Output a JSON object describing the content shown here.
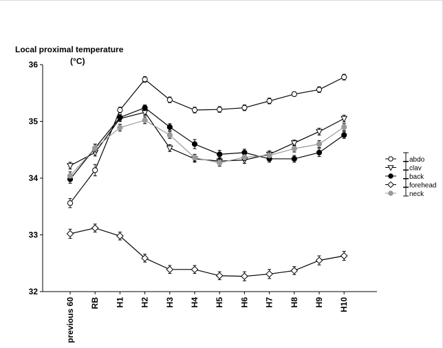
{
  "chart_data": {
    "type": "line",
    "title": "Local proximal temperature",
    "ylabel": "(°C)",
    "xlabel": "",
    "categories": [
      "previous 60",
      "RB",
      "H1",
      "H2",
      "H3",
      "H4",
      "H5",
      "H6",
      "H7",
      "H8",
      "H9",
      "H10"
    ],
    "ylim": [
      32,
      36
    ],
    "yticks": [
      32,
      33,
      34,
      35,
      36
    ],
    "grid": false,
    "legend": "right",
    "series": [
      {
        "name": "abdo",
        "marker": "circle-open",
        "color": "#000000",
        "values": [
          33.56,
          34.14,
          35.2,
          35.74,
          35.38,
          35.2,
          35.21,
          35.24,
          35.36,
          35.48,
          35.56,
          35.78
        ],
        "errors": [
          0.08,
          0.1,
          0.05,
          0.05,
          0.05,
          0.05,
          0.05,
          0.05,
          0.05,
          0.04,
          0.05,
          0.05
        ]
      },
      {
        "name": "clav",
        "marker": "triangle-down-open",
        "color": "#000000",
        "values": [
          34.22,
          34.45,
          35.05,
          35.16,
          34.53,
          34.34,
          34.3,
          34.32,
          34.42,
          34.62,
          34.82,
          35.05
        ],
        "errors": [
          0.06,
          0.06,
          0.05,
          0.05,
          0.06,
          0.06,
          0.06,
          0.06,
          0.06,
          0.05,
          0.06,
          0.06
        ]
      },
      {
        "name": "back",
        "marker": "circle-filled",
        "color": "#000000",
        "values": [
          33.98,
          34.53,
          35.07,
          35.24,
          34.9,
          34.6,
          34.42,
          34.45,
          34.34,
          34.34,
          34.45,
          34.76
        ],
        "errors": [
          0.07,
          0.07,
          0.05,
          0.05,
          0.06,
          0.08,
          0.07,
          0.06,
          0.06,
          0.06,
          0.07,
          0.06
        ]
      },
      {
        "name": "forehead",
        "marker": "diamond-open",
        "color": "#000000",
        "values": [
          33.02,
          33.12,
          32.98,
          32.59,
          32.39,
          32.39,
          32.28,
          32.27,
          32.31,
          32.37,
          32.55,
          32.63
        ],
        "errors": [
          0.08,
          0.07,
          0.07,
          0.07,
          0.07,
          0.07,
          0.07,
          0.08,
          0.08,
          0.07,
          0.08,
          0.08
        ]
      },
      {
        "name": "neck",
        "marker": "circle-filled",
        "color": "#999999",
        "values": [
          34.04,
          34.53,
          34.89,
          35.02,
          34.76,
          34.36,
          34.27,
          34.37,
          34.4,
          34.52,
          34.6,
          34.9
        ],
        "errors": [
          0.07,
          0.07,
          0.06,
          0.06,
          0.06,
          0.06,
          0.06,
          0.06,
          0.06,
          0.06,
          0.06,
          0.06
        ]
      }
    ]
  }
}
